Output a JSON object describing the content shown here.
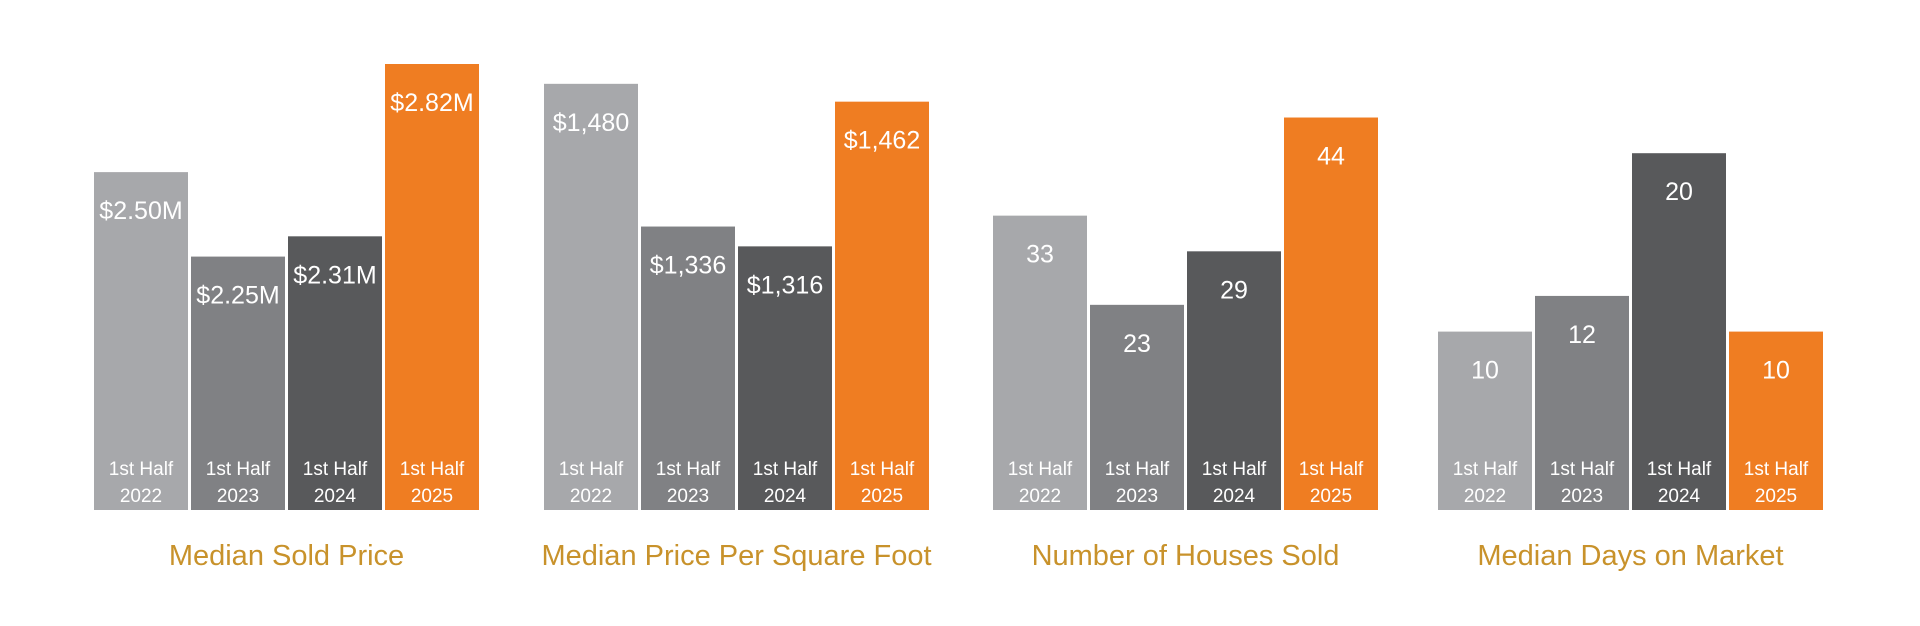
{
  "colors": {
    "bar_2022": "#a7a8ab",
    "bar_2023": "#808184",
    "bar_2024": "#58595b",
    "bar_2025": "#ef7d22",
    "title": "#c8922b",
    "text_on_bar": "#ffffff"
  },
  "chart_data": [
    {
      "type": "bar",
      "title": "Median Sold Price",
      "categories": [
        "1st Half 2022",
        "1st Half 2023",
        "1st Half 2024",
        "1st Half 2025"
      ],
      "values": [
        2.5,
        2.25,
        2.31,
        2.82
      ],
      "value_labels": [
        "$2.50M",
        "$2.25M",
        "$2.31M",
        "$2.82M"
      ],
      "unit": "$M",
      "ylim": [
        1.5,
        2.82
      ]
    },
    {
      "type": "bar",
      "title": "Median Price Per Square Foot",
      "categories": [
        "1st Half 2022",
        "1st Half 2023",
        "1st Half 2024",
        "1st Half 2025"
      ],
      "values": [
        1480,
        1336,
        1316,
        1462
      ],
      "value_labels": [
        "$1,480",
        "$1,336",
        "$1,316",
        "$1,462"
      ],
      "unit": "$",
      "ylim": [
        1050,
        1500
      ]
    },
    {
      "type": "bar",
      "title": "Number of Houses Sold",
      "categories": [
        "1st Half 2022",
        "1st Half 2023",
        "1st Half 2024",
        "1st Half 2025"
      ],
      "values": [
        33,
        23,
        29,
        44
      ],
      "value_labels": [
        "33",
        "23",
        "29",
        "44"
      ],
      "ylim": [
        0,
        50
      ]
    },
    {
      "type": "bar",
      "title": "Median Days on Market",
      "categories": [
        "1st Half 2022",
        "1st Half 2023",
        "1st Half 2024",
        "1st Half 2025"
      ],
      "values": [
        10,
        12,
        20,
        10
      ],
      "value_labels": [
        "10",
        "12",
        "20",
        "10"
      ],
      "ylim": [
        0,
        25
      ]
    }
  ]
}
